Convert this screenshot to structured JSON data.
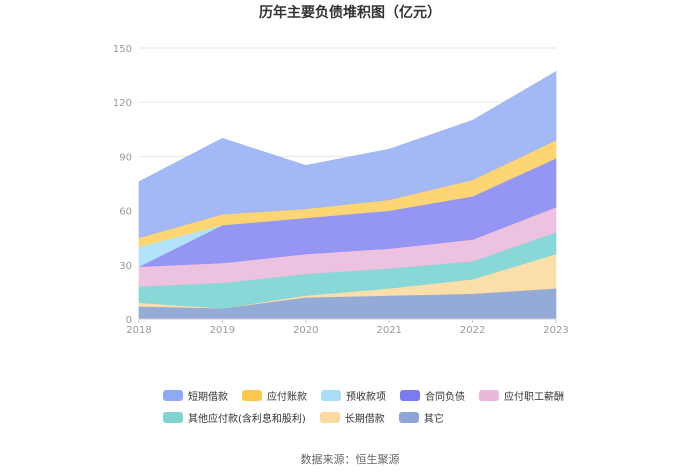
{
  "chart_data": {
    "type": "area",
    "stacked": true,
    "title": "历年主要负债堆积图（亿元）",
    "xlabel": "",
    "ylabel": "",
    "x": [
      "2018",
      "2019",
      "2020",
      "2021",
      "2022",
      "2023"
    ],
    "ylim": [
      0,
      150
    ],
    "yticks": [
      "0",
      "30",
      "60",
      "90",
      "120",
      "150"
    ],
    "grid": true,
    "legend_position": "bottom",
    "series": [
      {
        "name": "其它",
        "color": "#8ea6d6",
        "values": [
          7,
          6,
          12,
          13,
          14,
          17
        ]
      },
      {
        "name": "长期借款",
        "color": "#fbdda6",
        "values": [
          2,
          0,
          1,
          4,
          8,
          19
        ]
      },
      {
        "name": "其他应付款(含利息和股利)",
        "color": "#82d6d6",
        "values": [
          9,
          14,
          12,
          11,
          10,
          12
        ]
      },
      {
        "name": "应付职工薪酬",
        "color": "#ecbede",
        "values": [
          11,
          11,
          11,
          11,
          12,
          14
        ]
      },
      {
        "name": "合同负债",
        "color": "#8f8ff2",
        "values": [
          0,
          21,
          20,
          21,
          24,
          27
        ]
      },
      {
        "name": "预收款项",
        "color": "#aee1fb",
        "values": [
          11,
          0,
          0,
          0,
          0,
          0
        ]
      },
      {
        "name": "应付账款",
        "color": "#fdd46c",
        "values": [
          5,
          6,
          5,
          6,
          9,
          10
        ]
      },
      {
        "name": "短期借款",
        "color": "#9db5f5",
        "values": [
          31,
          42,
          24,
          28,
          33,
          38
        ]
      }
    ]
  },
  "legend": {
    "row1": [
      {
        "label": "短期借款",
        "color": "#8fa9f5"
      },
      {
        "label": "应付账款",
        "color": "#fdc94d"
      },
      {
        "label": "预收款项",
        "color": "#a9def9"
      },
      {
        "label": "合同负债",
        "color": "#7b7bf0"
      },
      {
        "label": "应付职工薪酬",
        "color": "#ebb7dc"
      }
    ],
    "row2": [
      {
        "label": "其他应付款(含利息和股利)",
        "color": "#7fd3d3"
      },
      {
        "label": "长期借款",
        "color": "#fbd9a0"
      },
      {
        "label": "其它",
        "color": "#8ea6d6"
      }
    ]
  },
  "source": "数据来源：恒生聚源"
}
